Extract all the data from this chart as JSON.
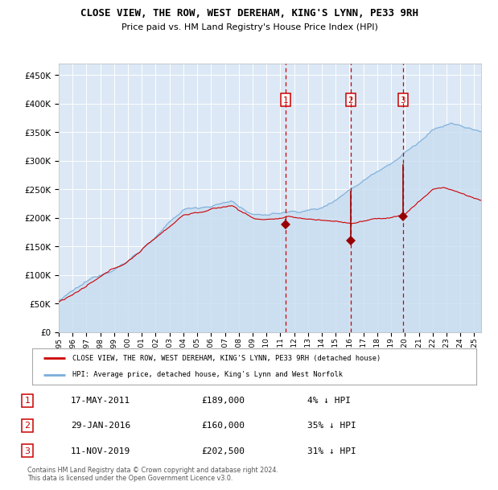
{
  "title": "CLOSE VIEW, THE ROW, WEST DEREHAM, KING'S LYNN, PE33 9RH",
  "subtitle": "Price paid vs. HM Land Registry's House Price Index (HPI)",
  "red_label": "CLOSE VIEW, THE ROW, WEST DEREHAM, KING'S LYNN, PE33 9RH (detached house)",
  "blue_label": "HPI: Average price, detached house, King's Lynn and West Norfolk",
  "footer": "Contains HM Land Registry data © Crown copyright and database right 2024.\nThis data is licensed under the Open Government Licence v3.0.",
  "transactions": [
    {
      "num": 1,
      "date": "17-MAY-2011",
      "price": 189000,
      "pct": "4% ↓ HPI"
    },
    {
      "num": 2,
      "date": "29-JAN-2016",
      "price": 160000,
      "pct": "35% ↓ HPI"
    },
    {
      "num": 3,
      "date": "11-NOV-2019",
      "price": 202500,
      "pct": "31% ↓ HPI"
    }
  ],
  "vline_dates": [
    2011.37,
    2016.08,
    2019.86
  ],
  "sale_prices": [
    189000,
    160000,
    202500
  ],
  "hpi_at_sale": [
    197000,
    246000,
    293000
  ],
  "background_color": "#ffffff",
  "plot_bg_color": "#dce8f5",
  "grid_color": "#ffffff",
  "red_line_color": "#cc0000",
  "blue_line_color": "#7aaddb",
  "blue_fill_color": "#c8ddf0",
  "vline_color": "#cc0000",
  "marker_color": "#990000",
  "box_color": "#cc0000",
  "ylim": [
    0,
    470000
  ],
  "xlim": [
    1995.0,
    2025.5
  ]
}
